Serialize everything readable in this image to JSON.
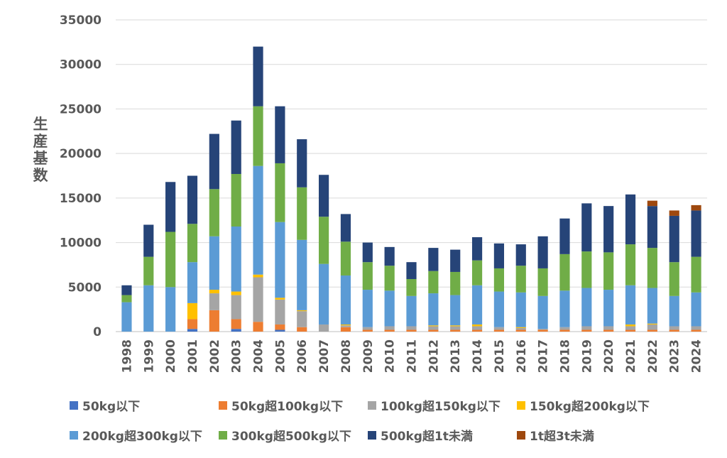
{
  "chart_data": {
    "type": "bar",
    "stacked": true,
    "title": "",
    "xlabel": "",
    "ylabel": "生産基数",
    "ylim": [
      0,
      35000
    ],
    "yticks": [
      0,
      5000,
      10000,
      15000,
      20000,
      25000,
      30000,
      35000
    ],
    "grid": true,
    "legend_position": "bottom",
    "categories": [
      "1998",
      "1999",
      "2000",
      "2001",
      "2002",
      "2003",
      "2004",
      "2005",
      "2006",
      "2007",
      "2008",
      "2009",
      "2010",
      "2011",
      "2012",
      "2013",
      "2014",
      "2015",
      "2016",
      "2017",
      "2018",
      "2019",
      "2020",
      "2021",
      "2022",
      "2023",
      "2024"
    ],
    "series": [
      {
        "name": "50kg以下",
        "color": "#4472C4",
        "values": [
          0,
          0,
          0,
          300,
          0,
          300,
          0,
          200,
          0,
          0,
          0,
          0,
          0,
          0,
          0,
          0,
          0,
          0,
          0,
          0,
          0,
          0,
          0,
          0,
          0,
          0,
          0
        ]
      },
      {
        "name": "50kg超100kg以下",
        "color": "#ED7D31",
        "values": [
          0,
          0,
          0,
          1100,
          2400,
          1100,
          1100,
          600,
          500,
          0,
          500,
          200,
          200,
          200,
          200,
          200,
          200,
          200,
          200,
          200,
          200,
          200,
          200,
          200,
          200,
          200,
          200
        ]
      },
      {
        "name": "100kg超150kg以下",
        "color": "#A5A5A5",
        "values": [
          0,
          0,
          0,
          0,
          1900,
          2700,
          5000,
          2800,
          1800,
          800,
          200,
          300,
          400,
          400,
          400,
          400,
          400,
          300,
          200,
          100,
          300,
          400,
          400,
          400,
          600,
          400,
          400
        ]
      },
      {
        "name": "150kg超200kg以下",
        "color": "#FFC000",
        "values": [
          0,
          0,
          0,
          1800,
          400,
          400,
          300,
          200,
          100,
          0,
          100,
          0,
          0,
          0,
          100,
          100,
          200,
          0,
          100,
          0,
          0,
          0,
          0,
          200,
          100,
          0,
          0
        ]
      },
      {
        "name": "200kg超300kg以下",
        "color": "#5B9BD5",
        "values": [
          3300,
          5200,
          5000,
          4600,
          6000,
          7300,
          12200,
          8500,
          7900,
          6800,
          5500,
          4200,
          4000,
          3400,
          3600,
          3400,
          4400,
          4000,
          3900,
          3700,
          4100,
          4300,
          4100,
          4400,
          4000,
          3400,
          3800
        ]
      },
      {
        "name": "300kg超500kg以下",
        "color": "#70AD47",
        "values": [
          800,
          3200,
          6200,
          4300,
          5300,
          5900,
          6700,
          6600,
          5900,
          5300,
          3800,
          3100,
          2800,
          1900,
          2500,
          2600,
          2800,
          2600,
          3000,
          3100,
          4100,
          4100,
          4200,
          4600,
          4500,
          3800,
          4000
        ]
      },
      {
        "name": "500kg超1t未満",
        "color": "#264478",
        "values": [
          1100,
          3600,
          5600,
          5400,
          6200,
          6000,
          6700,
          6400,
          5400,
          4700,
          3100,
          2200,
          2100,
          1900,
          2600,
          2500,
          2600,
          2800,
          2400,
          3600,
          4000,
          5400,
          5200,
          5600,
          4700,
          5200,
          5200
        ]
      },
      {
        "name": "1t超3t未満",
        "color": "#9E480E",
        "values": [
          0,
          0,
          0,
          0,
          0,
          0,
          0,
          0,
          0,
          0,
          0,
          0,
          0,
          0,
          0,
          0,
          0,
          0,
          0,
          0,
          0,
          0,
          0,
          0,
          600,
          600,
          600
        ]
      }
    ]
  }
}
